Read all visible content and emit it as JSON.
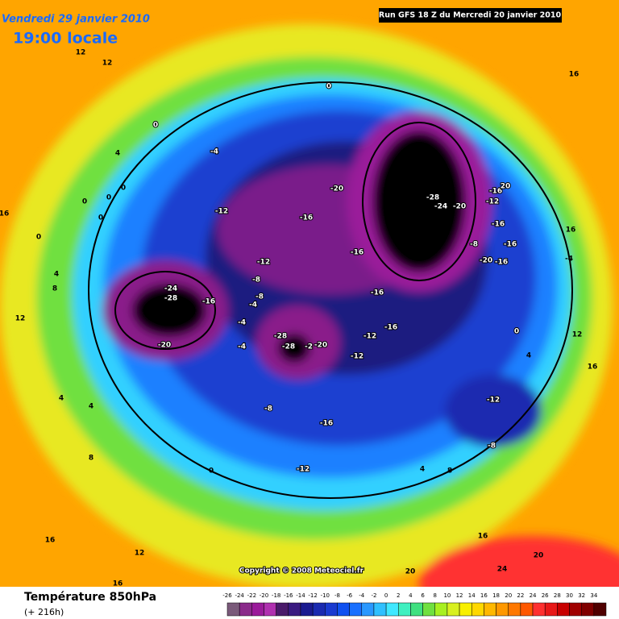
{
  "header": {
    "date": "Vendredi 29 janvier 2010",
    "time": "19:00 locale",
    "run": "Run GFS 18 Z du Mercredi 20 janvier 2010"
  },
  "footer": {
    "title": "Température 850hPa",
    "lead": "(+ 216h)",
    "copyright": "Copyright © 2008 Meteociel.fr"
  },
  "scale": {
    "labels": [
      "-26",
      "-24",
      "-22",
      "-20",
      "-18",
      "-16",
      "-14",
      "-12",
      "-10",
      "-8",
      "-6",
      "-4",
      "-2",
      "0",
      "2",
      "4",
      "6",
      "8",
      "10",
      "12",
      "14",
      "16",
      "18",
      "20",
      "22",
      "24",
      "26",
      "28",
      "30",
      "32",
      "34"
    ],
    "colors": [
      "#7a5a7a",
      "#8a2a8a",
      "#9a1a9a",
      "#b030b0",
      "#4a1a6a",
      "#3a1a80",
      "#1a1a90",
      "#1a2ab0",
      "#1a3ad0",
      "#1050f0",
      "#1a70ff",
      "#2a98ff",
      "#30c0ff",
      "#40e8ff",
      "#40f0c0",
      "#40e080",
      "#70e040",
      "#a8f020",
      "#d8f020",
      "#f8f000",
      "#ffd800",
      "#ffb800",
      "#ff9800",
      "#ff7800",
      "#ff5800",
      "#ff3030",
      "#e81818",
      "#c80000",
      "#a00000",
      "#800000",
      "#500000"
    ]
  },
  "contour_labels": [
    "12",
    "12",
    "16",
    "0",
    "0",
    "4",
    "-4",
    "0",
    "0",
    "0",
    "0",
    "0",
    "16",
    "-12",
    "-20",
    "-16",
    "-28",
    "-24",
    "-20",
    "-16",
    "20",
    "-12",
    "-16",
    "-8",
    "-16",
    "-20",
    "-16",
    "-4",
    "16",
    "-16",
    "-12",
    "-8",
    "-24",
    "-28",
    "-16",
    "-4",
    "-8",
    "-16",
    "8",
    "4",
    "12",
    "-4",
    "-4",
    "-28",
    "-28",
    "-2",
    "-20",
    "-12",
    "-16",
    "-20",
    "-12",
    "0",
    "4",
    "12",
    "16",
    "-12",
    "4",
    "4",
    "-8",
    "-16",
    "-8",
    "8",
    "0",
    "-12",
    "4",
    "8",
    "16",
    "12",
    "16",
    "20",
    "24",
    "20",
    "16"
  ]
}
